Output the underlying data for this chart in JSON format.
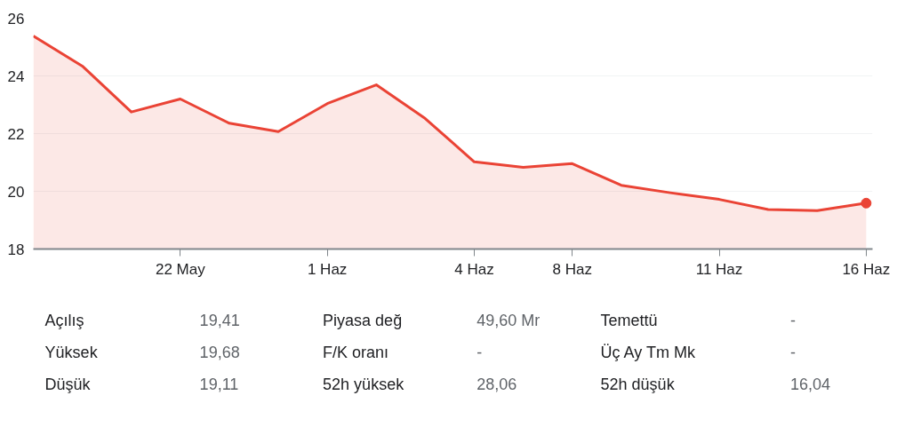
{
  "chart_data": {
    "type": "area",
    "categories": [
      null,
      null,
      null,
      "22 May",
      null,
      null,
      "1 Haz",
      null,
      null,
      "4 Haz",
      null,
      "8 Haz",
      null,
      null,
      "11 Haz",
      null,
      null,
      "16 Haz"
    ],
    "series": [
      {
        "color": "#ea4335",
        "values": [
          25.38,
          24.34,
          22.75,
          23.2,
          22.36,
          22.07,
          23.04,
          23.69,
          22.52,
          21.02,
          20.83,
          20.96,
          20.21,
          19.95,
          19.72,
          19.37,
          19.33,
          19.59
        ]
      }
    ],
    "ylim": [
      18,
      26
    ],
    "yticks": [
      18,
      20,
      22,
      24,
      26
    ],
    "grid": "y",
    "annotations": [
      "Açılış",
      "19,41",
      "Piyasa değ",
      "49,60 Mr",
      "Temettü",
      "-",
      "Yüksek",
      "19,68",
      "F/K oranı",
      "-",
      "Üç Ay Tm Mk",
      "-",
      "Düşük",
      "19,11",
      "52h yüksek",
      "28,06",
      "52h düşük",
      "16,04"
    ]
  }
}
